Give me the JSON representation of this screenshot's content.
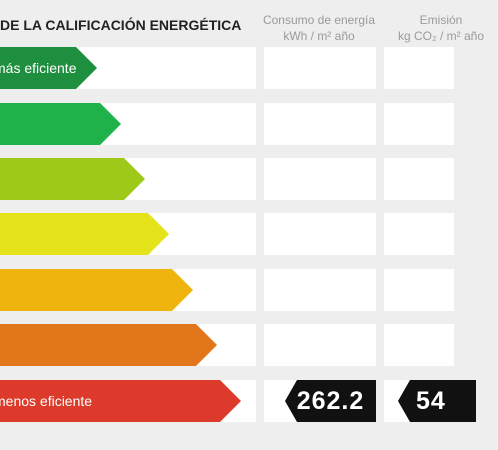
{
  "header": {
    "title": "DE LA CALIFICACIÓN ENERGÉTICA",
    "consumo_line1": "Consumo de energía",
    "consumo_line2": "kWh / m² año",
    "emision_line1": "Emisión",
    "emision_line2": "kg CO₂ / m² año"
  },
  "rows": [
    {
      "label": "más eficiente",
      "color": "#1e8f3e"
    },
    {
      "label": "",
      "color": "#1fb14a"
    },
    {
      "label": "",
      "color": "#9fc918"
    },
    {
      "label": "",
      "color": "#e5e319"
    },
    {
      "label": "",
      "color": "#f0b40f"
    },
    {
      "label": "",
      "color": "#e2761a"
    },
    {
      "label": "menos eficiente",
      "color": "#dc3a2a"
    }
  ],
  "values": {
    "consumo": "262.2",
    "emision": "54"
  }
}
